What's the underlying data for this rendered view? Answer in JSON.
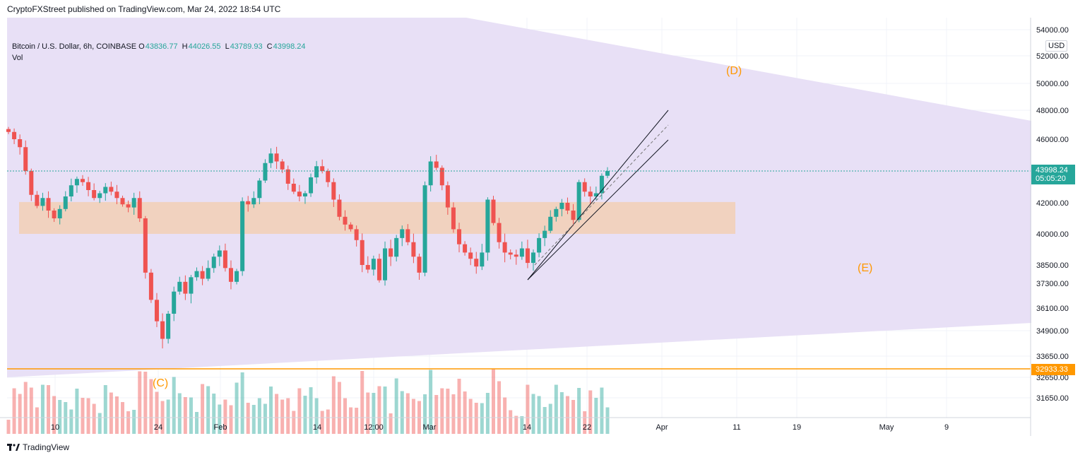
{
  "header": {
    "published": "CryptoFXStreet published on TradingView.com, Mar 24, 2022 18:54 UTC"
  },
  "legend": {
    "symbol": "Bitcoin / U.S. Dollar, 6h, COINBASE",
    "open_label": "O",
    "open": "43836.77",
    "high_label": "H",
    "high": "44026.55",
    "low_label": "L",
    "low": "43789.93",
    "close_label": "C",
    "close": "43998.24",
    "volume": "Vol"
  },
  "currency": "USD",
  "price_axis": {
    "ticks": [
      "54000.00",
      "52000.00",
      "50000.00",
      "48000.00",
      "46000.00",
      "42000.00",
      "40000.00",
      "38500.00",
      "37300.00",
      "36100.00",
      "34900.00",
      "33650.00",
      "32650.00",
      "31650.00"
    ],
    "tick_values": [
      54000,
      52000,
      50000,
      48000,
      46000,
      42000,
      40000,
      38500,
      37300,
      36100,
      34900,
      33650,
      32650,
      31650
    ]
  },
  "last_price": {
    "value": "43998.24",
    "countdown": "05:05:20",
    "color": "#26a69a"
  },
  "support_line": {
    "value": "32933.33",
    "color": "#ff9800"
  },
  "time_axis": {
    "labels": [
      "10",
      "24",
      "Feb",
      "14",
      "12:00",
      "Mar",
      "14",
      "22",
      "Apr",
      "11",
      "19",
      "May",
      "9"
    ]
  },
  "wave_labels": {
    "c": "(C)",
    "d": "(D)",
    "e": "(E)"
  },
  "colors": {
    "up": "#26a69a",
    "down": "#ef5350",
    "triangle": "#e8e0f6",
    "zone": "#f2cfb5",
    "wave": "#ff9800",
    "grid": "#f0f3fa"
  },
  "footer": {
    "brand": "TradingView"
  },
  "chart_data": {
    "type": "candlestick",
    "symbol": "BTCUSD",
    "timeframe": "6h",
    "exchange": "COINBASE",
    "series": [
      {
        "name": "price",
        "values": [
          46500,
          46000,
          45500,
          44000,
          42500,
          41800,
          42300,
          41500,
          41000,
          41600,
          42400,
          43100,
          43500,
          43300,
          42800,
          42300,
          42600,
          43000,
          42700,
          42300,
          41900,
          41700,
          42300,
          41000,
          38000,
          36500,
          35400,
          34500,
          35800,
          36900,
          37400,
          36800,
          37700,
          38100,
          37600,
          38300,
          38900,
          39200,
          38300,
          37400,
          38100,
          42100,
          41900,
          42300,
          43400,
          44500,
          45100,
          44600,
          44100,
          43200,
          42700,
          42400,
          42600,
          43600,
          44300,
          44000,
          43300,
          42200,
          41100,
          40600,
          40300,
          39700,
          38500,
          38200,
          38800,
          37500,
          39300,
          38900,
          39800,
          40300,
          39600,
          38900,
          38000,
          43100,
          44600,
          44200,
          43100,
          41700,
          40300,
          39500,
          39100,
          38800,
          38400,
          39100,
          42200,
          40700,
          39600,
          39100,
          39000,
          38900,
          39300,
          38600,
          39100,
          39800,
          40200,
          41100,
          41600,
          42000,
          41500,
          40900,
          43300,
          42700,
          42400,
          42600,
          43700,
          44000
        ]
      }
    ],
    "support_level": 32933.33,
    "last_price": 43998.24,
    "demand_zone": [
      40000,
      42050
    ],
    "wave_labels": [
      "(C)",
      "(D)",
      "(E)"
    ],
    "ylim": [
      31000,
      54500
    ],
    "grid": true
  }
}
